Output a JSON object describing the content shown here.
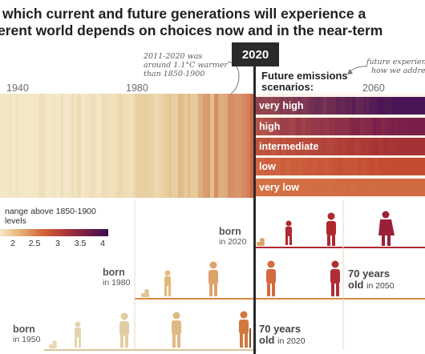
{
  "title": {
    "line1": "which current and future generations will experience a",
    "line2": "erent world depends on choices now and in the near-term"
  },
  "year_ticks": [
    "1940",
    "1980",
    "2060"
  ],
  "badge_2020": "2020",
  "annotation_warming": {
    "line1": "2011-2020 was",
    "line2": "around 1.1°C warmer",
    "line3": "than 1850-1900"
  },
  "annotation_future": {
    "line1": "future experien",
    "line2": "how we addres"
  },
  "future_emissions_label": {
    "line1": "Future emissions",
    "line2": "scenarios:"
  },
  "scenarios": [
    {
      "label": "very high",
      "color": "#4a1556"
    },
    {
      "label": "high",
      "color": "#7a1f4a"
    },
    {
      "label": "intermediate",
      "color": "#a53234"
    },
    {
      "label": "low",
      "color": "#c34c33"
    },
    {
      "label": "very low",
      "color": "#cf6a3f"
    }
  ],
  "legend": {
    "title": "nange above 1850-1900 levels",
    "ticks": [
      "2",
      "2.5",
      "3",
      "3.5",
      "4"
    ]
  },
  "generations": [
    {
      "born": "born",
      "born_year": "in 2020",
      "color": "#b0292e"
    },
    {
      "born": "born",
      "born_year": "in 1980",
      "age_years": "70 years",
      "age_old": "old",
      "age_in": "in 2050",
      "color": "#d98a3f"
    },
    {
      "born": "born",
      "born_year": "in 1950",
      "age_years": "70 years",
      "age_old": "old",
      "age_in": "in 2020",
      "color": "#dcc39a"
    }
  ]
}
